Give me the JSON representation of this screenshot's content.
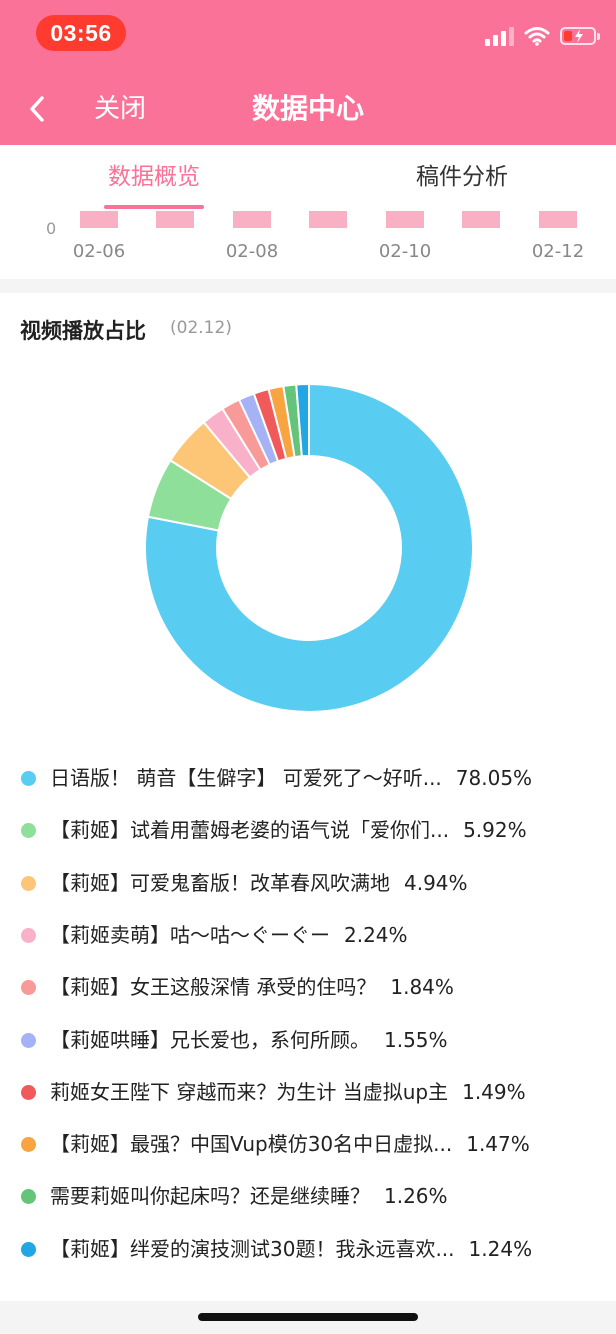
{
  "status_bar": {
    "time": "03:56"
  },
  "header": {
    "close_label": "关闭",
    "title": "数据中心"
  },
  "tabs": [
    {
      "label": "数据概览",
      "active": true
    },
    {
      "label": "稿件分析",
      "active": false
    }
  ],
  "trend": {
    "zero_label": "0",
    "dates": [
      "02-06",
      "02-08",
      "02-10",
      "02-12"
    ],
    "bar_color": "#f9b0c4"
  },
  "pie": {
    "title": "视频播放占比",
    "date": "(02.12)",
    "items": [
      {
        "label": "日语版！ 萌音【生僻字】 可爱死了～好听...",
        "pct": "78.05%",
        "value": 78.05,
        "color": "#58cdf1"
      },
      {
        "label": "【莉姬】试着用蕾姆老婆的语气说「爱你们...",
        "pct": "5.92%",
        "value": 5.92,
        "color": "#8ddf99"
      },
      {
        "label": "【莉姬】可爱鬼畜版！改革春风吹满地",
        "pct": "4.94%",
        "value": 4.94,
        "color": "#fdc677"
      },
      {
        "label": "【莉姬卖萌】咕～咕～ぐーぐー",
        "pct": "2.24%",
        "value": 2.24,
        "color": "#f8b1c8"
      },
      {
        "label": "【莉姬】女王这般深情 承受的住吗？",
        "pct": "1.84%",
        "value": 1.84,
        "color": "#f79a98"
      },
      {
        "label": "【莉姬哄睡】兄长爱也，系何所顾。",
        "pct": "1.55%",
        "value": 1.55,
        "color": "#a5b2f5"
      },
      {
        "label": "莉姬女王陛下 穿越而来？为生计 当虚拟up主",
        "pct": "1.49%",
        "value": 1.49,
        "color": "#f15a5a"
      },
      {
        "label": "【莉姬】最强？中国Vup模仿30名中日虚拟...",
        "pct": "1.47%",
        "value": 1.47,
        "color": "#f8a441"
      },
      {
        "label": "需要莉姬叫你起床吗？还是继续睡？",
        "pct": "1.26%",
        "value": 1.26,
        "color": "#63c47a"
      },
      {
        "label": "【莉姬】绊爱的演技测试30题！我永远喜欢...",
        "pct": "1.24%",
        "value": 1.24,
        "color": "#22a6e4"
      }
    ]
  },
  "colors": {
    "brand_pink": "#fb7299"
  }
}
